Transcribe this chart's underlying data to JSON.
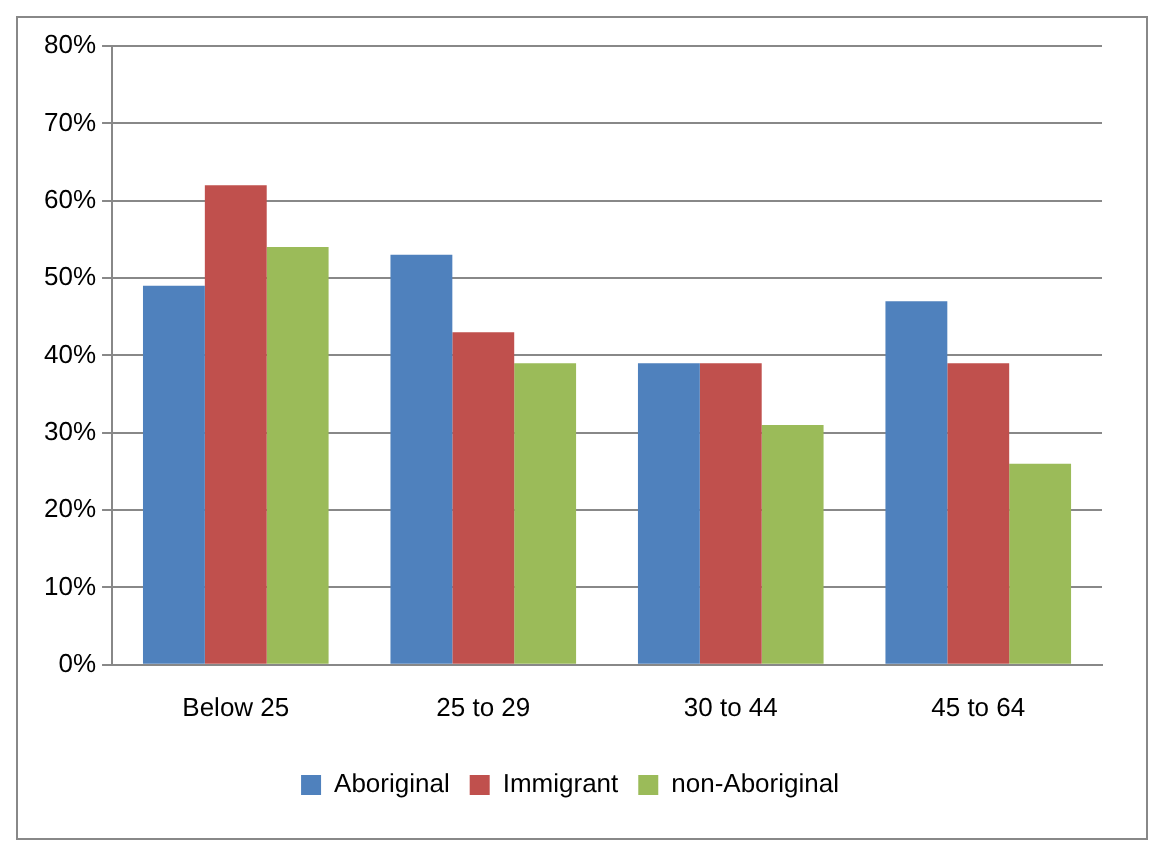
{
  "chart_data": {
    "type": "bar",
    "categories": [
      "Below 25",
      "25 to 29",
      "30 to 44",
      "45 to 64"
    ],
    "series": [
      {
        "name": "Aboriginal",
        "color": "#4f81bd",
        "values": [
          49,
          53,
          39,
          47
        ]
      },
      {
        "name": "Immigrant",
        "color": "#c0504d",
        "values": [
          62,
          43,
          39,
          39
        ]
      },
      {
        "name": "non-Aboriginal",
        "color": "#9bbb59",
        "values": [
          54,
          39,
          31,
          26
        ]
      }
    ],
    "ylim": [
      0,
      80
    ],
    "yticks": [
      {
        "value": 0,
        "label": "0%"
      },
      {
        "value": 10,
        "label": "10%"
      },
      {
        "value": 20,
        "label": "20%"
      },
      {
        "value": 30,
        "label": "30%"
      },
      {
        "value": 40,
        "label": "40%"
      },
      {
        "value": 50,
        "label": "50%"
      },
      {
        "value": 60,
        "label": "60%"
      },
      {
        "value": 70,
        "label": "70%"
      },
      {
        "value": 80,
        "label": "80%"
      }
    ],
    "grid": "y",
    "legend": "bottom"
  }
}
